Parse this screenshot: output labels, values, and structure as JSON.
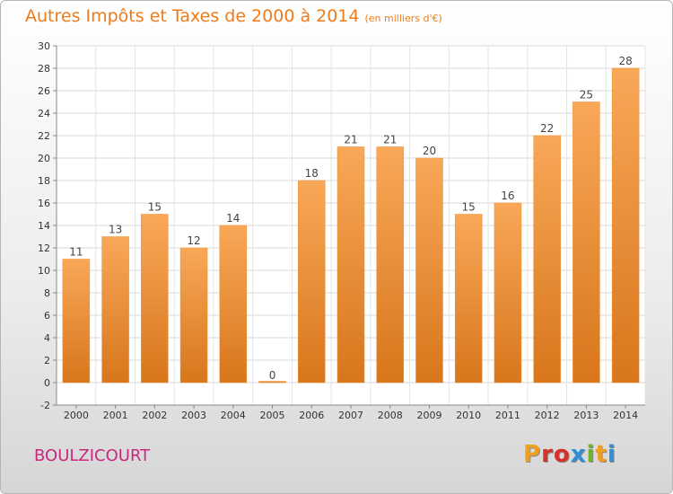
{
  "header": {
    "title": "Autres Impôts et Taxes de 2000 à 2014",
    "unit": "(en milliers d'€)"
  },
  "footer": {
    "city": "BOULZICOURT",
    "logo": "Proxiti",
    "logo_colors": [
      "#f0a020",
      "#d8302a",
      "#d8302a",
      "#2f8fd8",
      "#6fb52a",
      "#f0a020",
      "#2f8fd8"
    ]
  },
  "chart_data": {
    "type": "bar",
    "title": "Autres Impôts et Taxes de 2000 à 2014",
    "subtitle": "(en milliers d'€)",
    "xlabel": "",
    "ylabel": "",
    "categories": [
      "2000",
      "2001",
      "2002",
      "2003",
      "2004",
      "2005",
      "2006",
      "2007",
      "2008",
      "2009",
      "2010",
      "2011",
      "2012",
      "2013",
      "2014"
    ],
    "values": [
      11,
      13,
      15,
      12,
      14,
      0,
      18,
      21,
      21,
      20,
      15,
      16,
      22,
      25,
      28
    ],
    "ylim": [
      -2,
      30
    ],
    "yticks": [
      -2,
      0,
      2,
      4,
      6,
      8,
      10,
      12,
      14,
      16,
      18,
      20,
      22,
      24,
      26,
      28,
      30
    ],
    "grid": true,
    "bar_color": "#f0902e",
    "bar_color_light": "#f8a858",
    "bar_color_dark": "#d8761c"
  }
}
